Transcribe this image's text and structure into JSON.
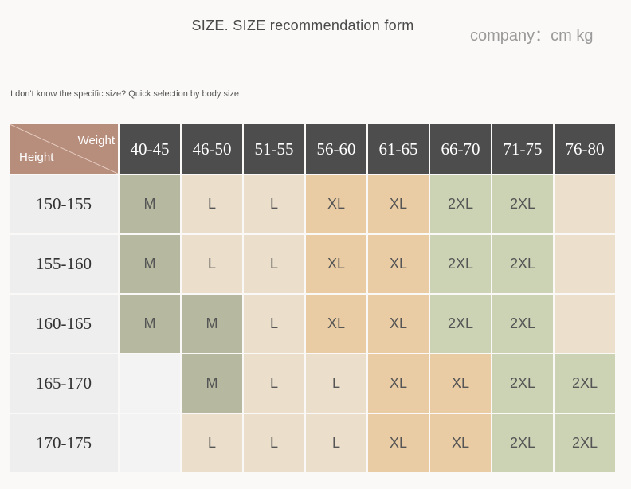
{
  "header": {
    "title": "SIZE. SIZE recommendation form",
    "unit": "company：cm kg",
    "subtitle": "I don't know the specific size? Quick selection by body size"
  },
  "table": {
    "corner_weight": "Weight",
    "corner_height": "Height",
    "weights": [
      "40-45",
      "46-50",
      "51-55",
      "56-60",
      "61-65",
      "66-70",
      "71-75",
      "76-80"
    ],
    "rows": [
      {
        "height": "150-155",
        "cells": [
          "M",
          "L",
          "L",
          "XL",
          "XL",
          "2XL",
          "2XL",
          ""
        ]
      },
      {
        "height": "155-160",
        "cells": [
          "M",
          "L",
          "L",
          "XL",
          "XL",
          "2XL",
          "2XL",
          ""
        ]
      },
      {
        "height": "160-165",
        "cells": [
          "M",
          "M",
          "L",
          "XL",
          "XL",
          "2XL",
          "2XL",
          ""
        ]
      },
      {
        "height": "165-170",
        "cells": [
          "",
          "M",
          "L",
          "L",
          "XL",
          "XL",
          "2XL",
          "2XL"
        ]
      },
      {
        "height": "170-175",
        "cells": [
          "",
          "L",
          "L",
          "L",
          "XL",
          "XL",
          "2XL",
          "2XL"
        ]
      }
    ]
  },
  "colors": {
    "corner": "#b78d7c",
    "header_dark": "#4d4d4d",
    "grey_green": "#b6b9a0",
    "cream": "#ebdfcc",
    "orange": "#eacca4",
    "light_green": "#ccd3b5",
    "blank": "#f3f3f3"
  }
}
